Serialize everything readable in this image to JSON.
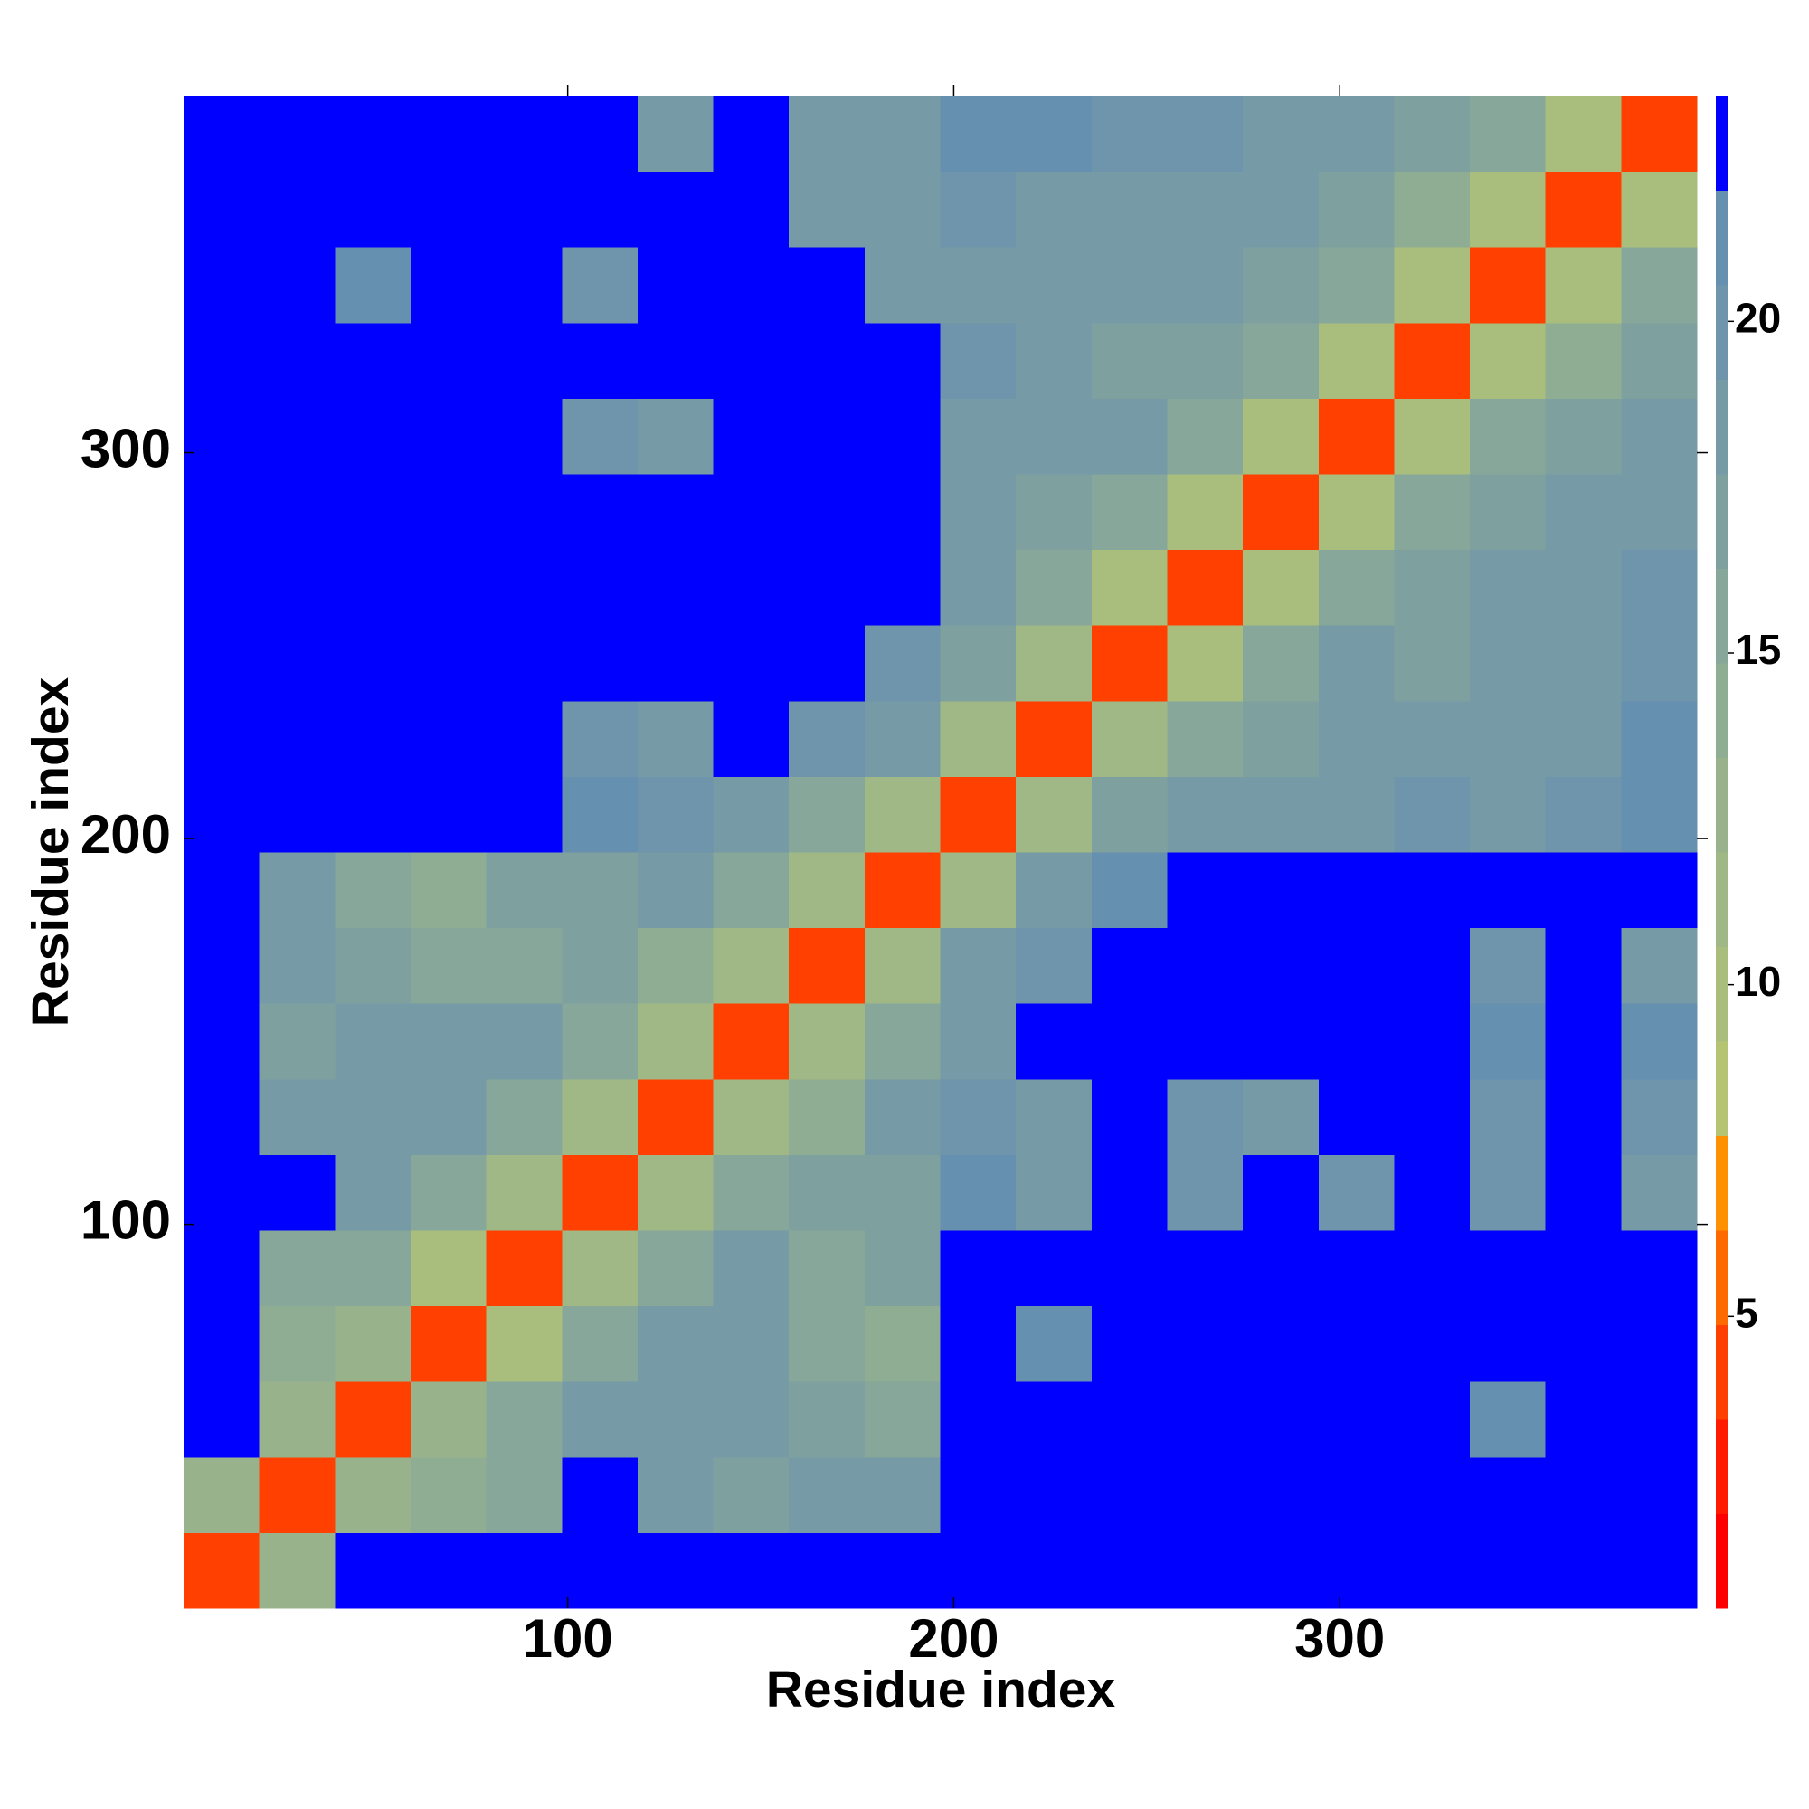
{
  "chart_data": {
    "type": "heatmap",
    "x_label": "Residue index",
    "y_label": "Residue index",
    "xlim": [
      0.5,
      392.5
    ],
    "ylim": [
      0.5,
      392.5
    ],
    "xticks": [
      100,
      200,
      300
    ],
    "yticks": [
      100,
      200,
      300
    ],
    "clim": [
      0.6,
      23.4
    ],
    "cticks": [
      5,
      10,
      15,
      20
    ],
    "colors": [
      "#ff0000",
      "#ff1a00",
      "#ff4000",
      "#ff6a00",
      "#ff9000",
      "#b4c472",
      "#a9be7d",
      "#a0b885",
      "#98b38c",
      "#8fad93",
      "#86a79a",
      "#7ea1a0",
      "#769ba6",
      "#6e95ab",
      "#6690b0",
      "#0000ff"
    ],
    "z": [
      [
        4,
        12,
        23,
        23,
        23,
        23,
        23,
        23,
        23,
        23,
        23,
        23,
        23,
        23,
        23,
        23,
        23,
        23,
        23,
        23
      ],
      [
        12,
        4,
        12,
        14,
        16,
        23,
        18,
        17,
        18,
        18,
        23,
        23,
        23,
        23,
        23,
        23,
        23,
        23,
        23,
        23
      ],
      [
        23,
        12,
        4,
        12,
        16,
        18,
        19,
        19,
        17,
        15,
        22,
        23,
        23,
        23,
        23,
        23,
        23,
        21,
        23,
        23
      ],
      [
        23,
        14,
        12,
        4,
        10,
        15,
        19,
        18,
        15,
        14,
        23,
        21,
        23,
        23,
        23,
        23,
        23,
        23,
        23,
        23
      ],
      [
        23,
        16,
        16,
        10,
        4,
        11,
        16,
        18,
        16,
        17,
        23,
        23,
        23,
        23,
        23,
        23,
        23,
        23,
        23,
        23
      ],
      [
        23,
        23,
        18,
        15,
        11,
        4,
        11,
        15,
        17,
        17,
        21,
        19,
        23,
        20,
        23,
        20,
        23,
        20,
        23,
        19
      ],
      [
        23,
        18,
        19,
        19,
        16,
        11,
        4,
        11,
        14,
        18,
        20,
        19,
        23,
        20,
        19,
        23,
        23,
        20,
        23,
        20
      ],
      [
        23,
        17,
        19,
        18,
        18,
        15,
        11,
        4,
        11,
        15,
        19,
        23,
        23,
        23,
        23,
        23,
        23,
        21,
        23,
        21
      ],
      [
        23,
        18,
        17,
        15,
        16,
        17,
        14,
        11,
        4,
        11,
        18,
        20,
        23,
        23,
        23,
        23,
        23,
        20,
        23,
        19
      ],
      [
        23,
        18,
        15,
        14,
        17,
        17,
        18,
        15,
        11,
        4,
        11,
        19,
        21,
        23,
        23,
        23,
        23,
        23,
        23,
        23
      ],
      [
        23,
        23,
        22,
        23,
        23,
        21,
        20,
        19,
        16,
        11,
        4,
        11,
        17,
        18,
        19,
        19,
        20,
        19,
        20,
        21
      ],
      [
        23,
        23,
        23,
        23,
        23,
        20,
        19,
        23,
        20,
        19,
        11,
        4,
        11,
        15,
        17,
        18,
        19,
        18,
        19,
        21
      ],
      [
        23,
        23,
        23,
        23,
        23,
        23,
        23,
        23,
        23,
        20,
        17,
        11,
        4,
        10,
        15,
        18,
        17,
        19,
        19,
        20
      ],
      [
        23,
        23,
        23,
        23,
        23,
        23,
        23,
        23,
        23,
        23,
        18,
        15,
        10,
        4,
        10,
        16,
        17,
        18,
        18,
        20
      ],
      [
        23,
        23,
        23,
        23,
        23,
        23,
        23,
        23,
        23,
        23,
        19,
        17,
        15,
        10,
        4,
        10,
        15,
        17,
        18,
        19
      ],
      [
        23,
        23,
        23,
        23,
        23,
        20,
        19,
        23,
        23,
        23,
        19,
        18,
        18,
        16,
        10,
        4,
        10,
        15,
        17,
        19
      ],
      [
        23,
        23,
        23,
        23,
        23,
        23,
        23,
        23,
        23,
        23,
        20,
        19,
        17,
        17,
        15,
        10,
        4,
        10,
        14,
        17
      ],
      [
        23,
        23,
        21,
        23,
        23,
        20,
        23,
        23,
        23,
        19,
        19,
        18,
        19,
        18,
        17,
        15,
        10,
        4,
        10,
        15
      ],
      [
        23,
        23,
        23,
        23,
        23,
        23,
        23,
        23,
        19,
        19,
        20,
        19,
        19,
        18,
        18,
        17,
        14,
        10,
        4,
        10
      ],
      [
        23,
        23,
        23,
        23,
        23,
        23,
        19,
        23,
        19,
        19,
        21,
        21,
        20,
        20,
        19,
        19,
        17,
        15,
        10,
        4
      ]
    ]
  }
}
